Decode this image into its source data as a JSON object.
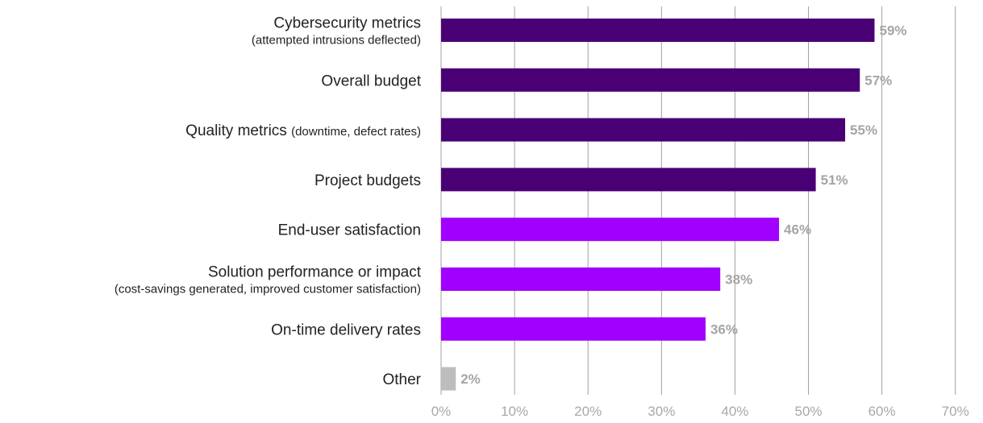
{
  "chart_data": {
    "type": "bar",
    "orientation": "horizontal",
    "title": "",
    "xlabel": "",
    "ylabel": "",
    "xlim": [
      0,
      70
    ],
    "tick_values": [
      0,
      10,
      20,
      30,
      40,
      50,
      60,
      70
    ],
    "tick_labels": [
      "0%",
      "10%",
      "20%",
      "30%",
      "40%",
      "50%",
      "60%",
      "70%"
    ],
    "grid": true,
    "legend": "none",
    "categories": [
      {
        "label": "Cybersecurity metrics",
        "sublabel": "(attempted intrusions deflected)",
        "layout": "two-line"
      },
      {
        "label": "Overall budget",
        "sublabel": "",
        "layout": "single"
      },
      {
        "label": "Quality metrics",
        "sublabel": "(downtime, defect rates)",
        "layout": "inline"
      },
      {
        "label": "Project budgets",
        "sublabel": "",
        "layout": "single"
      },
      {
        "label": "End-user satisfaction",
        "sublabel": "",
        "layout": "single"
      },
      {
        "label": "Solution performance or impact",
        "sublabel": "(cost-savings generated, improved customer satisfaction)",
        "layout": "two-line"
      },
      {
        "label": "On-time delivery rates",
        "sublabel": "",
        "layout": "single"
      },
      {
        "label": "Other",
        "sublabel": "",
        "layout": "single"
      }
    ],
    "values": [
      59,
      57,
      55,
      51,
      46,
      38,
      36,
      2
    ],
    "value_labels": [
      "59%",
      "57%",
      "55%",
      "51%",
      "46%",
      "38%",
      "36%",
      "2%"
    ],
    "bar_colors": [
      "#4a0075",
      "#4a0075",
      "#4a0075",
      "#4a0075",
      "#a100ff",
      "#a100ff",
      "#a100ff",
      "#bdbdbd"
    ]
  }
}
